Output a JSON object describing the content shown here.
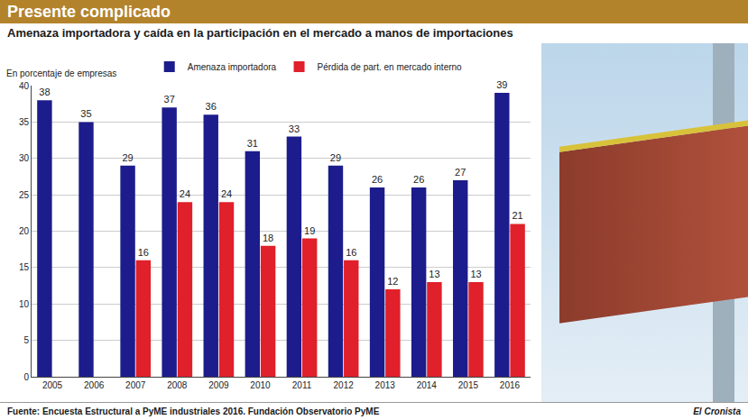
{
  "chart_data": {
    "type": "bar",
    "title": "Presente complicado",
    "subtitle": "Amenaza importadora y caída en la participación en el mercado a manos de importaciones",
    "y_label": "En porcentaje de empresas",
    "source": "Fuente: Encuesta Estructural a PyME industriales 2016. Fundación Observatorio PyME",
    "credit": "El Cronista",
    "categories": [
      "2005",
      "2006",
      "2007",
      "2008",
      "2009",
      "2010",
      "2011",
      "2012",
      "2013",
      "2014",
      "2015",
      "2016"
    ],
    "series": [
      {
        "name": "Amenaza importadora",
        "color": "#1c1c8c",
        "values": [
          38,
          35,
          29,
          37,
          36,
          31,
          33,
          29,
          26,
          26,
          27,
          39
        ]
      },
      {
        "name": "Pérdida de part. en mercado interno",
        "color": "#e0202a",
        "values": [
          null,
          null,
          16,
          24,
          24,
          18,
          19,
          16,
          12,
          13,
          13,
          21
        ]
      }
    ],
    "ylim": [
      0,
      40
    ],
    "yticks": [
      0,
      5,
      10,
      15,
      20,
      25,
      30,
      35,
      40
    ],
    "grid": true,
    "legend": "top-left",
    "data_labels": true
  }
}
